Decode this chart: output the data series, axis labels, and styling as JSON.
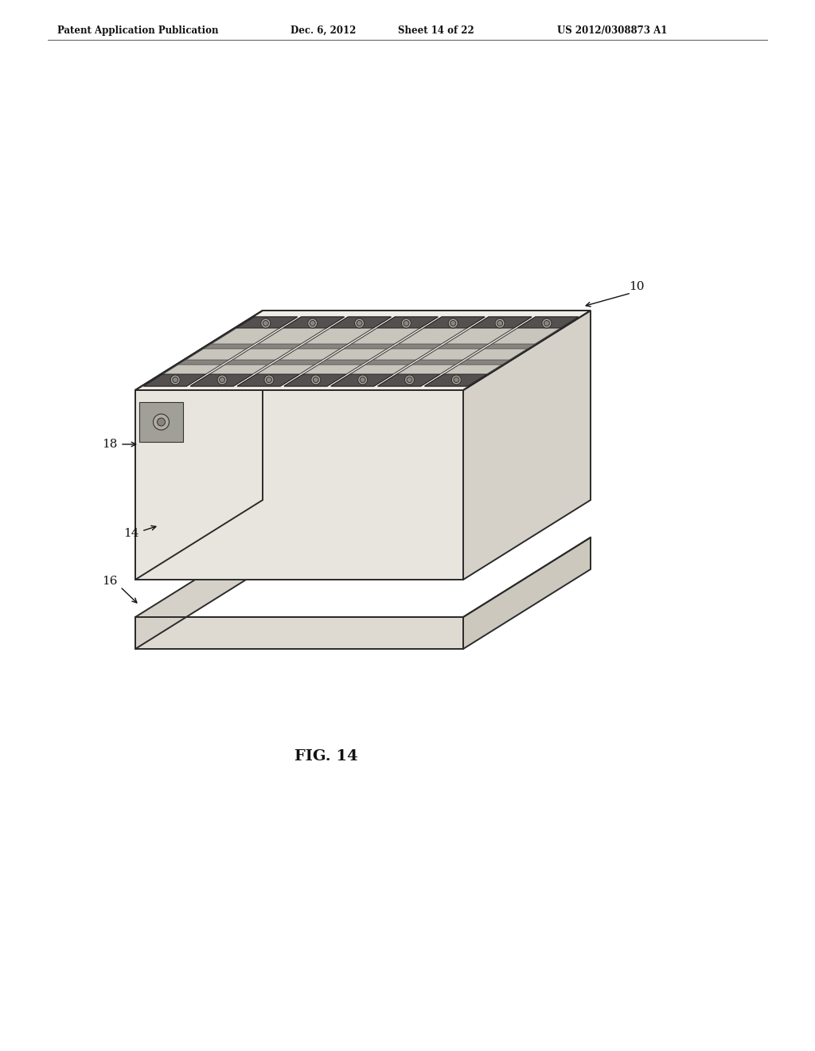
{
  "header_left": "Patent Application Publication",
  "header_date": "Dec. 6, 2012",
  "header_sheet": "Sheet 14 of 22",
  "header_right": "US 2012/0308873 A1",
  "figure_label": "FIG. 14",
  "label_10": "10",
  "label_14": "14",
  "label_16": "16",
  "label_18": "18",
  "bg_color": "#ffffff",
  "line_color": "#2a2a2a",
  "fill_front": "#e8e5df",
  "fill_right": "#d5d1c8",
  "fill_top": "#f0ede7",
  "fill_base_front": "#dedad2",
  "fill_base_right": "#ccc8be",
  "fill_cell_body": "#cdc9c0",
  "fill_cell_top": "#d8d4cc",
  "fill_connector": "#555050",
  "fill_divider": "#888480"
}
